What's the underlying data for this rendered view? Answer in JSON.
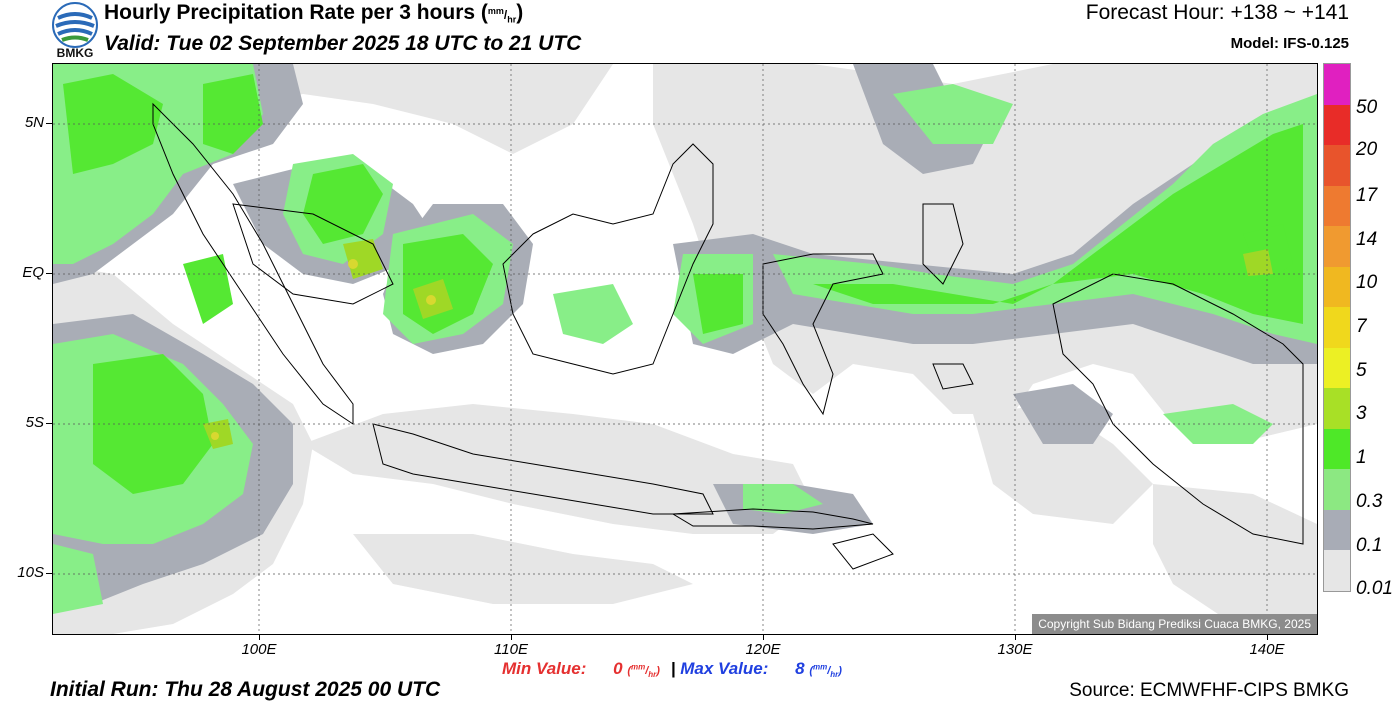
{
  "logo": {
    "text": "BMKG",
    "icon": "bmkg-logo-icon"
  },
  "header": {
    "title": "Hourly Precipitation Rate per 3 hours (",
    "unit_sup": "mm",
    "unit_sub": "hr",
    "title_close": ")",
    "valid": "Valid: Tue 02 September 2025 18 UTC to 21 UTC",
    "forecast_hour": "Forecast Hour: +138 ~ +141",
    "model": "Model: IFS-0.125"
  },
  "map": {
    "lat_labels": [
      "5N",
      "EQ",
      "5S",
      "10S"
    ],
    "lon_labels": [
      "100E",
      "110E",
      "120E",
      "130E",
      "140E"
    ],
    "copyright": "Copyright Sub Bidang Prediksi Cuaca BMKG, 2025",
    "colors": {
      "trace": "#e6e6e6",
      "light": "#a9adb6",
      "low": "#88ee88",
      "mid": "#55e833",
      "high": "#9fd826",
      "peak": "#d8d830",
      "coast": "#000000"
    }
  },
  "legend": {
    "labels": [
      "50",
      "20",
      "17",
      "14",
      "10",
      "7",
      "5",
      "3",
      "1",
      "0.3",
      "0.1",
      "0.01"
    ],
    "colors": [
      "#e020c0",
      "#e82c28",
      "#e8542c",
      "#ee7a30",
      "#f09a30",
      "#f0b820",
      "#f0d81c",
      "#ecf024",
      "#a8e026",
      "#4ee828",
      "#8ce882",
      "#a8acb6",
      "#e6e6e6"
    ]
  },
  "footer": {
    "min_label": "Min Value:",
    "min_value": "0",
    "max_label": "Max Value:",
    "max_value": "8",
    "unit_sup": "mm",
    "unit_sub": "hr",
    "separator": "|",
    "initial_run": "Initial Run: Thu 28 August 2025 00 UTC",
    "source": "Source: ECMWFHF-CIPS BMKG"
  }
}
